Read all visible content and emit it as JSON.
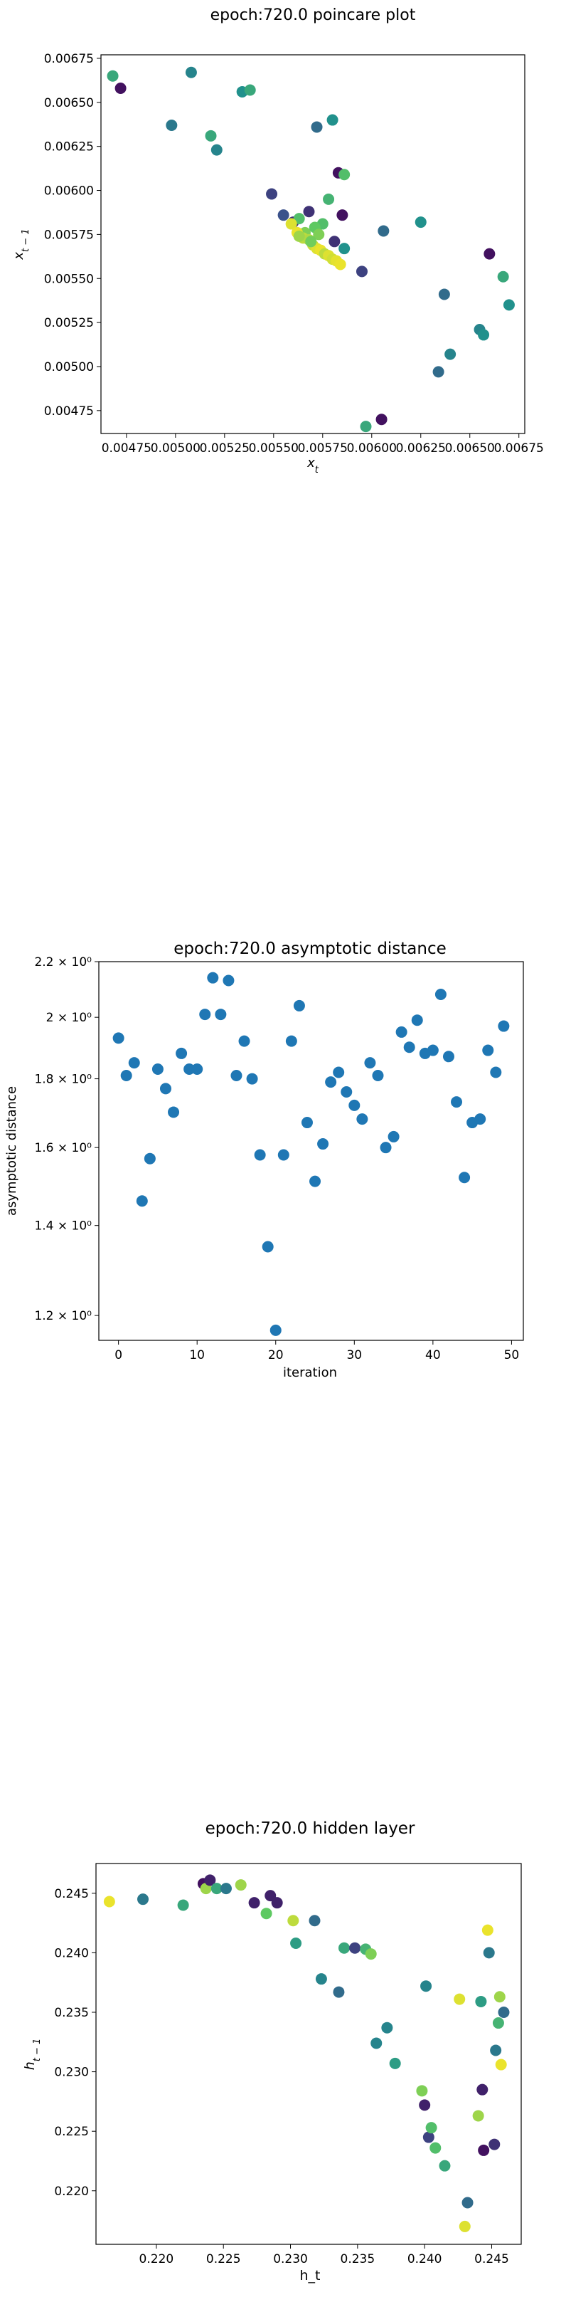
{
  "chart_data": [
    {
      "type": "scatter",
      "title": "epoch:720.0 poincare plot",
      "xlabel": "x_t",
      "ylabel": "x_{t-1}",
      "xlim": [
        0.00462,
        0.00678
      ],
      "ylim": [
        0.00462,
        0.00677
      ],
      "xticks": [
        "0.00475",
        "0.00500",
        "0.00525",
        "0.00550",
        "0.00575",
        "0.00600",
        "0.00625",
        "0.00650",
        "0.00675"
      ],
      "xtick_values": [
        0.00475,
        0.005,
        0.00525,
        0.0055,
        0.00575,
        0.006,
        0.00625,
        0.0065,
        0.00675
      ],
      "yticks": [
        "0.00475",
        "0.00500",
        "0.00525",
        "0.00550",
        "0.00575",
        "0.00600",
        "0.00625",
        "0.00650",
        "0.00675"
      ],
      "ytick_values": [
        0.00475,
        0.005,
        0.00525,
        0.0055,
        0.00575,
        0.006,
        0.00625,
        0.0065,
        0.00675
      ],
      "grid": false,
      "x": [
        0.00468,
        0.00472,
        0.00498,
        0.00508,
        0.00518,
        0.00521,
        0.00534,
        0.00538,
        0.00549,
        0.00555,
        0.0056,
        0.00563,
        0.00566,
        0.00568,
        0.00572,
        0.00575,
        0.00578,
        0.0058,
        0.00581,
        0.00583,
        0.00585,
        0.00586,
        0.00586,
        0.00595,
        0.00597,
        0.00605,
        0.00606,
        0.00625,
        0.00634,
        0.00637,
        0.0064,
        0.00655,
        0.00657,
        0.0066,
        0.00667,
        0.0067,
        0.00559,
        0.00562,
        0.00565,
        0.00568,
        0.0057,
        0.00572,
        0.00574,
        0.00576,
        0.00578,
        0.0058,
        0.00582,
        0.00584,
        0.00571,
        0.00573,
        0.00563,
        0.00569
      ],
      "y": [
        0.00665,
        0.00658,
        0.00637,
        0.00667,
        0.00631,
        0.00623,
        0.00656,
        0.00657,
        0.00598,
        0.00586,
        0.00582,
        0.00584,
        0.00576,
        0.00588,
        0.00636,
        0.00581,
        0.00595,
        0.0064,
        0.00571,
        0.0061,
        0.00586,
        0.00567,
        0.00609,
        0.00554,
        0.00466,
        0.0047,
        0.00577,
        0.00582,
        0.00497,
        0.00541,
        0.00507,
        0.00521,
        0.00518,
        0.00564,
        0.00551,
        0.00535,
        0.00581,
        0.00576,
        0.00573,
        0.00572,
        0.00569,
        0.00567,
        0.00566,
        0.00564,
        0.00563,
        0.00561,
        0.0056,
        0.00558,
        0.00579,
        0.00575,
        0.00574,
        0.00571
      ],
      "color_index": [
        0.6,
        0.05,
        0.4,
        0.45,
        0.6,
        0.45,
        0.5,
        0.6,
        0.2,
        0.25,
        0.15,
        0.7,
        0.8,
        0.15,
        0.35,
        0.7,
        0.65,
        0.5,
        0.15,
        0.05,
        0.05,
        0.5,
        0.7,
        0.2,
        0.6,
        0.05,
        0.35,
        0.5,
        0.35,
        0.35,
        0.45,
        0.45,
        0.5,
        0.05,
        0.6,
        0.5,
        0.95,
        0.97,
        0.9,
        0.88,
        0.92,
        0.95,
        0.97,
        0.9,
        0.95,
        0.93,
        0.96,
        0.97,
        0.75,
        0.8,
        0.85,
        0.78
      ]
    },
    {
      "type": "scatter",
      "title": "epoch:720.0 asymptotic distance",
      "xlabel": "iteration",
      "ylabel": "asymptotic distance",
      "yscale": "log",
      "xlim": [
        -2.5,
        51.5
      ],
      "ylim": [
        1.15,
        2.2
      ],
      "xticks": [
        "0",
        "10",
        "20",
        "30",
        "40",
        "50"
      ],
      "xtick_values": [
        0,
        10,
        20,
        30,
        40,
        50
      ],
      "yticks": [
        "1.2 × 10⁰",
        "1.4 × 10⁰",
        "1.6 × 10⁰",
        "1.8 × 10⁰",
        "2 × 10⁰",
        "2.2 × 10⁰"
      ],
      "ytick_values": [
        1.2,
        1.4,
        1.6,
        1.8,
        2.0,
        2.2
      ],
      "grid": false,
      "color": "#1f77b4",
      "x": [
        0,
        1,
        2,
        3,
        4,
        5,
        6,
        7,
        8,
        9,
        10,
        11,
        12,
        13,
        14,
        15,
        16,
        17,
        18,
        19,
        20,
        21,
        22,
        23,
        24,
        25,
        26,
        27,
        28,
        29,
        30,
        31,
        32,
        33,
        34,
        35,
        36,
        37,
        38,
        39,
        40,
        41,
        42,
        43,
        44,
        45,
        46,
        47,
        48,
        49
      ],
      "y": [
        1.93,
        1.81,
        1.85,
        1.46,
        1.57,
        1.83,
        1.77,
        1.7,
        1.88,
        1.83,
        1.83,
        2.01,
        2.14,
        2.01,
        2.13,
        1.81,
        1.92,
        1.8,
        1.58,
        1.35,
        1.17,
        1.58,
        1.92,
        2.04,
        1.67,
        1.51,
        1.61,
        1.79,
        1.82,
        1.76,
        1.72,
        1.68,
        1.85,
        1.81,
        1.6,
        1.63,
        1.95,
        1.9,
        1.99,
        1.88,
        1.89,
        2.08,
        1.87,
        1.73,
        1.52,
        1.67,
        1.68,
        1.89,
        1.82,
        1.97
      ]
    },
    {
      "type": "scatter",
      "title": "epoch:720.0 hidden layer",
      "xlabel": "h_t",
      "ylabel": "h_{t-1}",
      "xlim": [
        0.2155,
        0.2472
      ],
      "ylim": [
        0.2155,
        0.2475
      ],
      "xticks": [
        "0.220",
        "0.225",
        "0.230",
        "0.235",
        "0.240",
        "0.245"
      ],
      "xtick_values": [
        0.22,
        0.225,
        0.23,
        0.235,
        0.24,
        0.245
      ],
      "yticks": [
        "0.220",
        "0.225",
        "0.230",
        "0.235",
        "0.240",
        "0.245"
      ],
      "ytick_values": [
        0.22,
        0.225,
        0.23,
        0.235,
        0.24,
        0.245
      ],
      "grid": false,
      "x": [
        0.2165,
        0.219,
        0.222,
        0.2235,
        0.2237,
        0.224,
        0.2245,
        0.2252,
        0.2263,
        0.2273,
        0.2282,
        0.2285,
        0.229,
        0.2302,
        0.2304,
        0.2318,
        0.2323,
        0.2336,
        0.234,
        0.2348,
        0.2356,
        0.236,
        0.2364,
        0.2372,
        0.2378,
        0.2398,
        0.24,
        0.2401,
        0.2403,
        0.2405,
        0.2408,
        0.2415,
        0.2426,
        0.243,
        0.2432,
        0.244,
        0.2442,
        0.2443,
        0.2444,
        0.2447,
        0.2448,
        0.2452,
        0.2453,
        0.2455,
        0.2456,
        0.2457,
        0.2459
      ],
      "y": [
        0.2443,
        0.2445,
        0.244,
        0.2458,
        0.2454,
        0.2461,
        0.2454,
        0.2454,
        0.2457,
        0.2442,
        0.2433,
        0.2448,
        0.2442,
        0.2427,
        0.2408,
        0.2427,
        0.2378,
        0.2367,
        0.2404,
        0.2404,
        0.2403,
        0.2399,
        0.2324,
        0.2337,
        0.2307,
        0.2284,
        0.2272,
        0.2372,
        0.2245,
        0.2253,
        0.2236,
        0.2221,
        0.2361,
        0.217,
        0.219,
        0.2263,
        0.2359,
        0.2285,
        0.2234,
        0.2419,
        0.24,
        0.2239,
        0.2318,
        0.2341,
        0.2363,
        0.2306,
        0.235
      ],
      "color_index": [
        0.97,
        0.4,
        0.6,
        0.05,
        0.85,
        0.1,
        0.6,
        0.4,
        0.85,
        0.1,
        0.75,
        0.1,
        0.1,
        0.9,
        0.55,
        0.35,
        0.45,
        0.35,
        0.6,
        0.2,
        0.65,
        0.8,
        0.45,
        0.45,
        0.55,
        0.8,
        0.1,
        0.45,
        0.2,
        0.7,
        0.7,
        0.6,
        0.95,
        0.95,
        0.35,
        0.85,
        0.55,
        0.1,
        0.05,
        0.97,
        0.4,
        0.15,
        0.4,
        0.65,
        0.85,
        0.97,
        0.35
      ]
    }
  ]
}
